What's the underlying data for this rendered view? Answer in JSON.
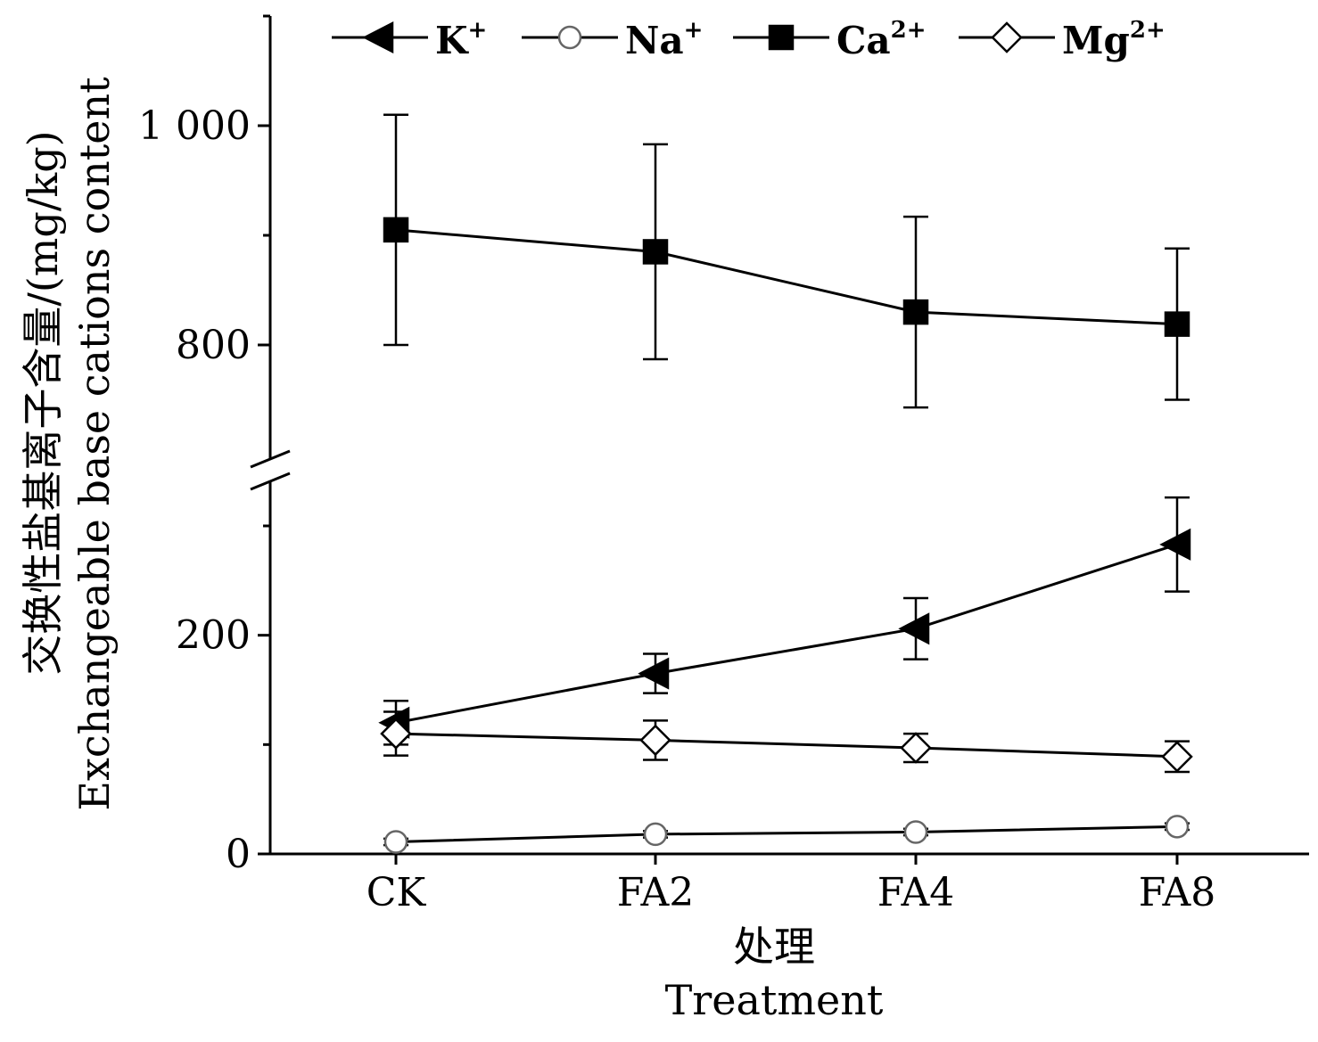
{
  "chart_data": {
    "type": "line",
    "categories": [
      "CK",
      "FA2",
      "FA4",
      "FA8"
    ],
    "xlabel": [
      "处理",
      "Treatment"
    ],
    "ylabel": [
      "交换性盐基离子含量/(mg/kg)",
      "Exchangeable base cations content"
    ],
    "y_axis_break": true,
    "ylim_lower": [
      0,
      300
    ],
    "ylim_upper": [
      700,
      1100
    ],
    "yticks": [
      {
        "value": 0,
        "label": "0"
      },
      {
        "value": 200,
        "label": "200"
      },
      {
        "value": 800,
        "label": "800"
      },
      {
        "value": 1000,
        "label": "1 000"
      }
    ],
    "legend_position": "top",
    "series": [
      {
        "name": "K+",
        "name_base": "K",
        "name_sup": "+",
        "marker": "triangle-left",
        "filled": true,
        "values": [
          120,
          165,
          206,
          283
        ],
        "errors": [
          20,
          18,
          28,
          43
        ]
      },
      {
        "name": "Na+",
        "name_base": "Na",
        "name_sup": "+",
        "marker": "circle",
        "filled": false,
        "values": [
          11,
          18,
          20,
          25
        ],
        "errors": [
          3,
          3,
          3,
          3
        ]
      },
      {
        "name": "Ca2+",
        "name_base": "Ca",
        "name_sup": "2+",
        "marker": "square",
        "filled": true,
        "values": [
          905,
          885,
          830,
          819
        ],
        "errors": [
          105,
          98,
          87,
          69
        ]
      },
      {
        "name": "Mg2+",
        "name_base": "Mg",
        "name_sup": "2+",
        "marker": "diamond",
        "filled": false,
        "values": [
          110,
          104,
          97,
          89
        ],
        "errors": [
          20,
          18,
          13,
          14
        ]
      }
    ]
  }
}
